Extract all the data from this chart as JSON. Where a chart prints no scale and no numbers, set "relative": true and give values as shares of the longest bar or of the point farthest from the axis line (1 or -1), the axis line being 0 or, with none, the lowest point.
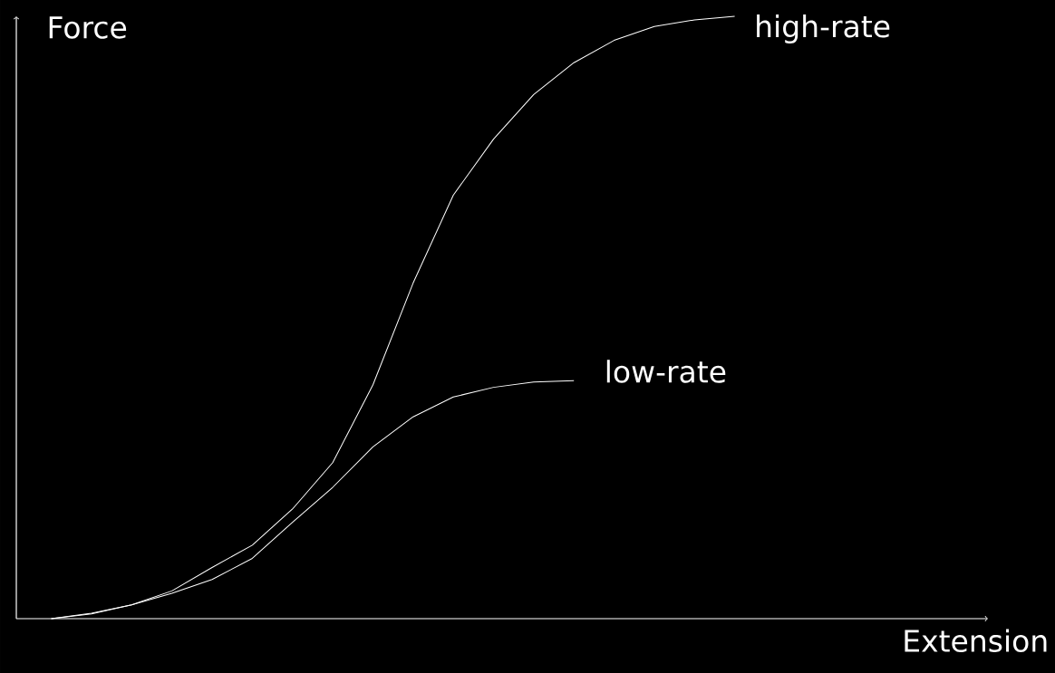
{
  "chart_data": {
    "type": "line",
    "relative": true,
    "xlabel": "Extension",
    "ylabel": "Force",
    "categories": [
      null,
      null,
      null,
      null,
      null,
      null,
      null,
      null,
      null,
      null,
      null,
      null,
      null,
      null,
      null,
      null,
      null,
      null,
      null,
      null,
      null,
      null,
      null,
      null,
      null
    ],
    "series": [
      {
        "name": "high-rate",
        "color": "#ffffff",
        "values": [
          0,
          0.008,
          0.023,
          0.046,
          0.085,
          0.122,
          0.182,
          0.259,
          0.388,
          0.557,
          0.703,
          0.796,
          0.87,
          0.923,
          0.96,
          0.983,
          0.994,
          1,
          null,
          null,
          null,
          null,
          null,
          null,
          null
        ]
      },
      {
        "name": "low-rate",
        "color": "#ffffff",
        "values": [
          0,
          0.009,
          0.023,
          0.042,
          0.065,
          0.1,
          0.16,
          0.218,
          0.285,
          0.335,
          0.368,
          0.384,
          0.393,
          0.395,
          null,
          null,
          null,
          null,
          null,
          null,
          null,
          null,
          null,
          null,
          null
        ]
      }
    ]
  }
}
